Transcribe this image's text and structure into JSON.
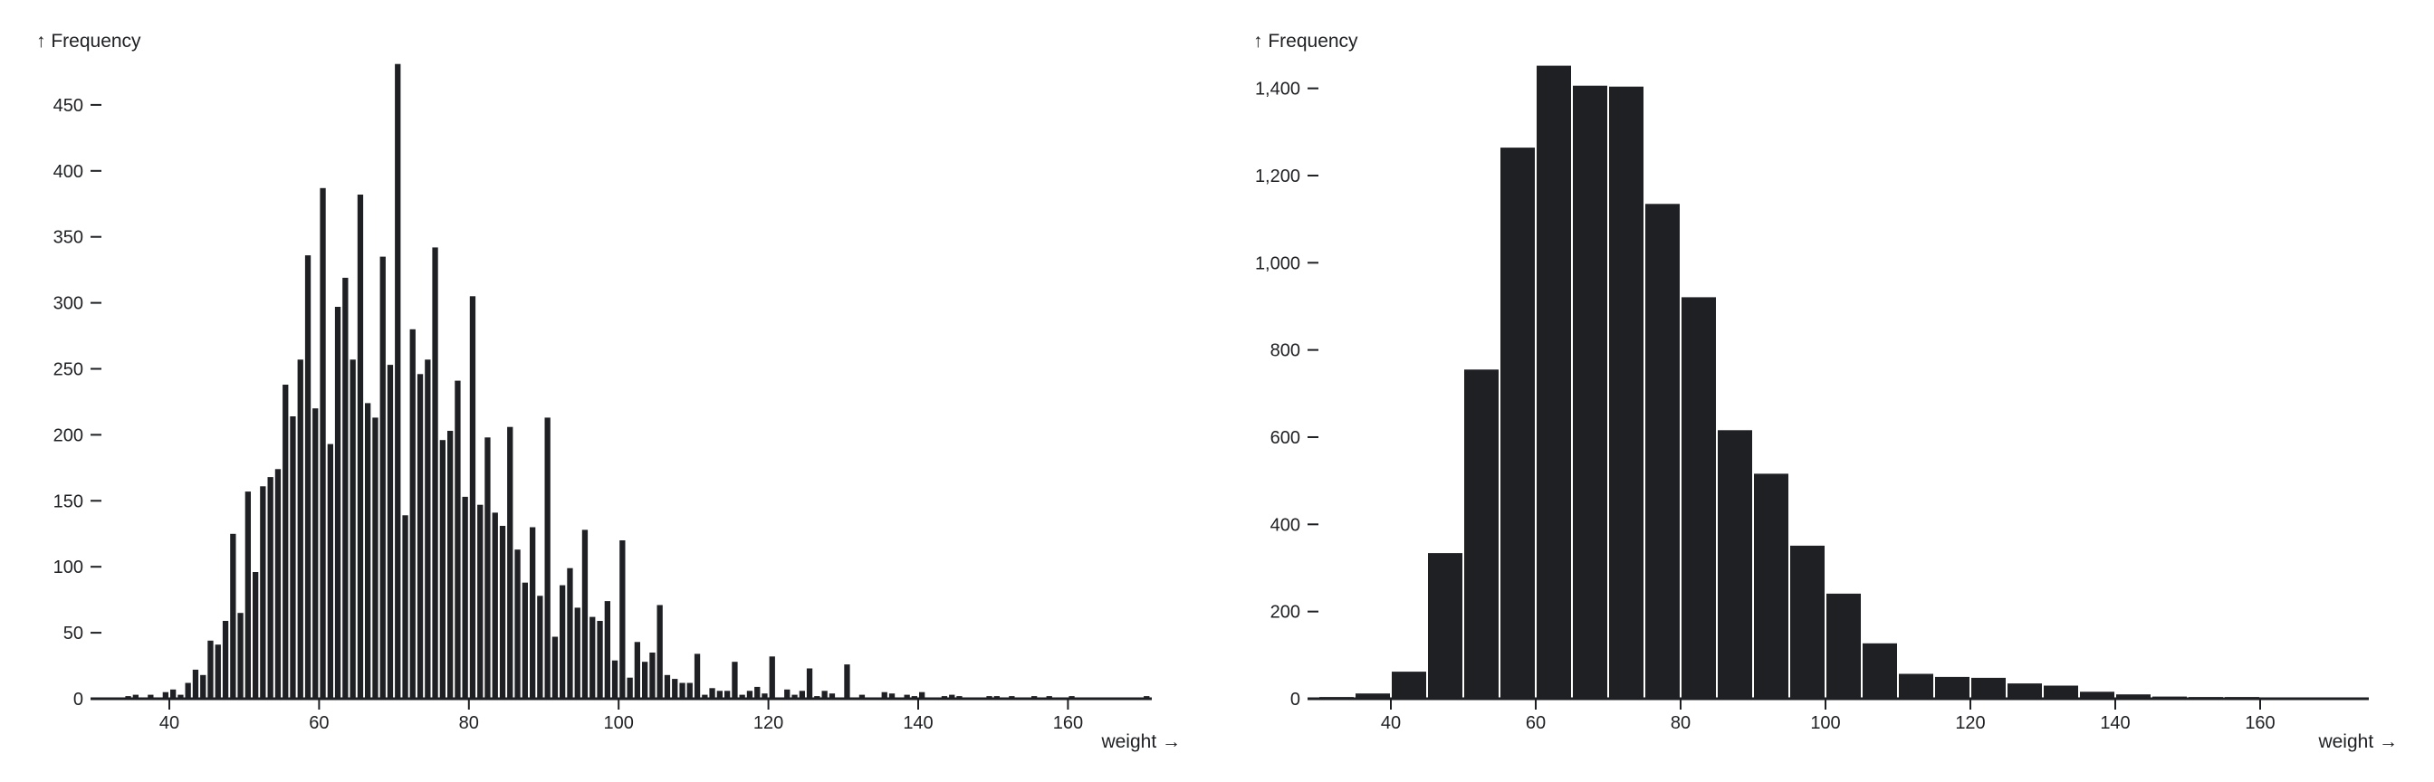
{
  "colors": {
    "bar": "#1e2024",
    "text": "#1d1f22",
    "background": "#ffffff",
    "bar_gap": "#ffffff"
  },
  "chart_data": [
    {
      "type": "bar",
      "subtype": "histogram",
      "title": "",
      "xlabel": "weight →",
      "ylabel": "↑ Frequency",
      "bin_width": 1,
      "xlim": [
        29.5,
        171.5
      ],
      "ylim": [
        0,
        490
      ],
      "x_ticks": [
        40,
        60,
        80,
        100,
        120,
        140,
        160
      ],
      "y_ticks": [
        0,
        50,
        100,
        150,
        200,
        250,
        300,
        350,
        400,
        450
      ],
      "y_tick_labels": [
        "0",
        "50",
        "100",
        "150",
        "200",
        "250",
        "300",
        "350",
        "400",
        "450"
      ],
      "grid": false,
      "legend": null,
      "bins_start": 31,
      "values": [
        1,
        0,
        1,
        2,
        3,
        1,
        3,
        0,
        5,
        7,
        3,
        12,
        22,
        18,
        44,
        41,
        59,
        125,
        65,
        157,
        96,
        161,
        168,
        174,
        238,
        214,
        257,
        336,
        220,
        387,
        193,
        297,
        319,
        257,
        382,
        224,
        213,
        335,
        253,
        481,
        139,
        280,
        246,
        257,
        342,
        196,
        203,
        241,
        153,
        305,
        147,
        198,
        141,
        131,
        206,
        113,
        88,
        130,
        78,
        213,
        47,
        86,
        99,
        69,
        128,
        62,
        59,
        74,
        29,
        120,
        16,
        43,
        28,
        35,
        71,
        18,
        15,
        12,
        12,
        34,
        3,
        8,
        6,
        6,
        28,
        3,
        6,
        9,
        4,
        32,
        1,
        7,
        3,
        6,
        23,
        2,
        6,
        4,
        0,
        26,
        0,
        3,
        1,
        1,
        5,
        4,
        1,
        3,
        2,
        5,
        0,
        1,
        2,
        3,
        2,
        1,
        0,
        1,
        2,
        2,
        0,
        2,
        0,
        1,
        2,
        0,
        2,
        0,
        1,
        2,
        0,
        0,
        1,
        0,
        1,
        0,
        0,
        0,
        0,
        2
      ]
    },
    {
      "type": "bar",
      "subtype": "histogram",
      "title": "",
      "xlabel": "weight →",
      "ylabel": "↑ Frequency",
      "bin_width": 5,
      "xlim": [
        28.5,
        175
      ],
      "ylim": [
        0,
        1510
      ],
      "x_ticks": [
        40,
        60,
        80,
        100,
        120,
        140,
        160
      ],
      "y_ticks": [
        0,
        200,
        400,
        600,
        800,
        1000,
        1200,
        1400
      ],
      "y_tick_labels": [
        "0",
        "200",
        "400",
        "600",
        "800",
        "1,000",
        "1,200",
        "1,400"
      ],
      "grid": false,
      "legend": null,
      "bins_start": 30,
      "values": [
        4,
        12,
        62,
        334,
        755,
        1264,
        1452,
        1406,
        1404,
        1135,
        921,
        616,
        516,
        351,
        241,
        127,
        57,
        50,
        48,
        35,
        30,
        16,
        10,
        5,
        4,
        4,
        2,
        0,
        0
      ]
    }
  ],
  "panels": [
    {
      "y_axis_title": "↑ Frequency",
      "x_axis_title": "weight →"
    },
    {
      "y_axis_title": "↑ Frequency",
      "x_axis_title": "weight →"
    }
  ]
}
